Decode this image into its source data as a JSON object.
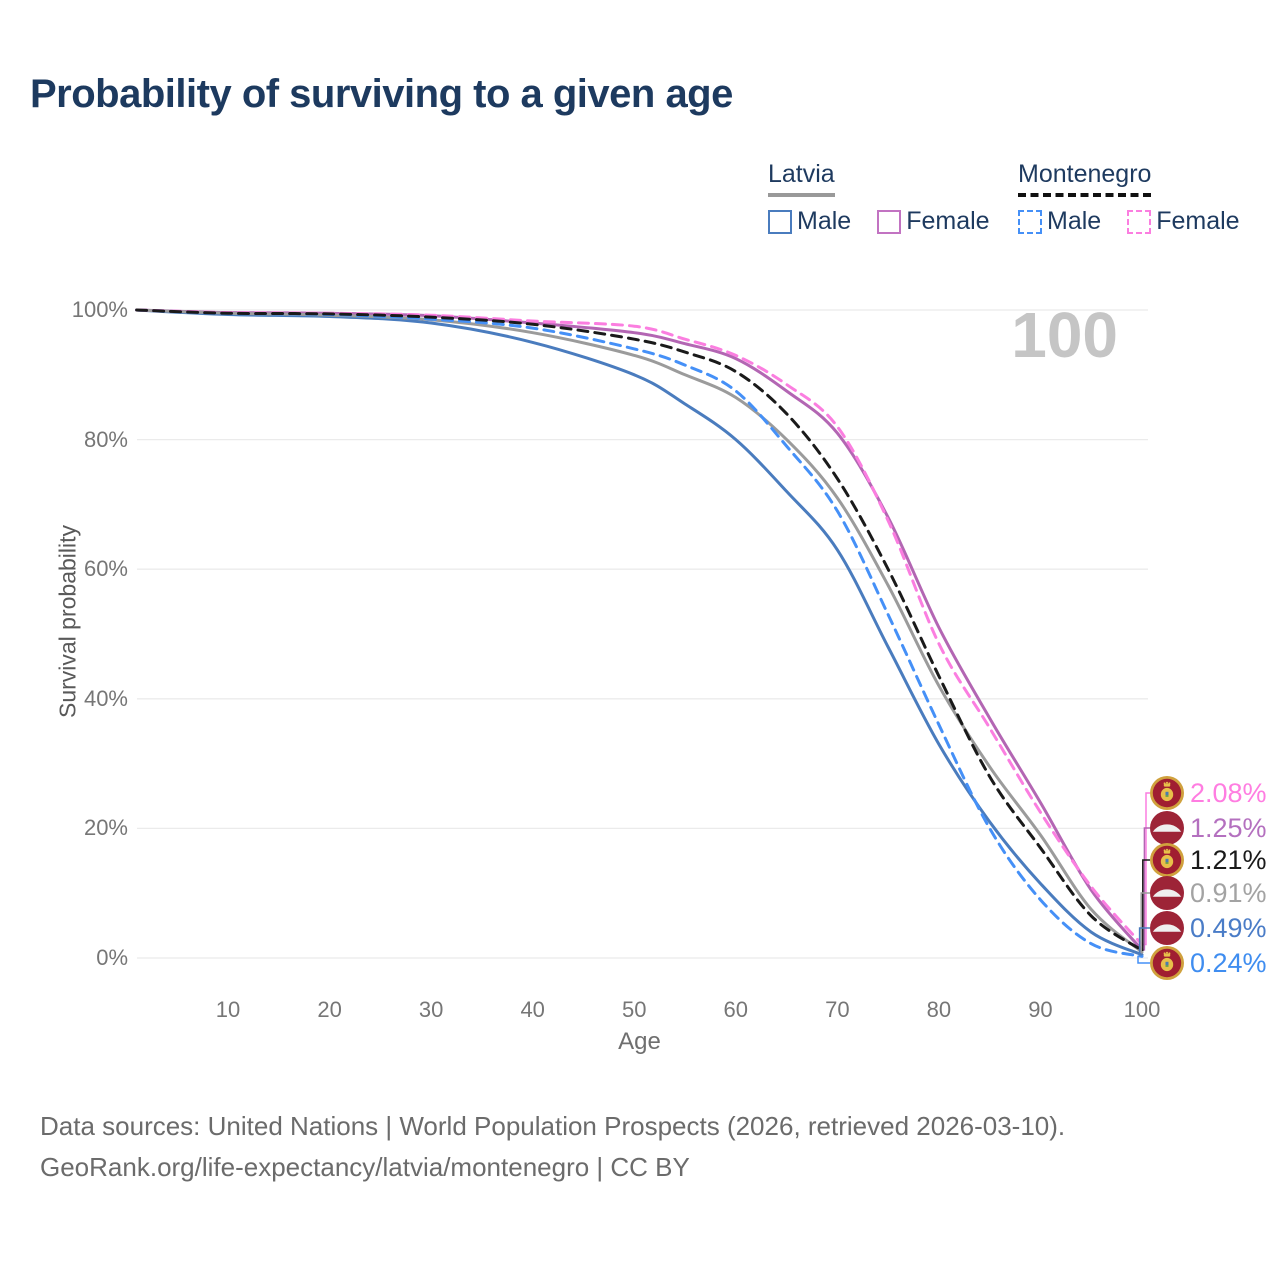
{
  "title": "Probability of surviving to a given age",
  "watermark": "100",
  "legend": {
    "groups": [
      {
        "label": "Latvia",
        "line_style": "solid",
        "underline_color": "#999999",
        "items": [
          {
            "label": "Male",
            "color": "#4a7cbe",
            "dashed": false
          },
          {
            "label": "Female",
            "color": "#c273c2",
            "dashed": false
          }
        ]
      },
      {
        "label": "Montenegro",
        "line_style": "dashed",
        "underline_color": "#111111",
        "items": [
          {
            "label": "Male",
            "color": "#4590f7",
            "dashed": true
          },
          {
            "label": "Female",
            "color": "#fb7ee0",
            "dashed": true
          }
        ]
      }
    ]
  },
  "chart_data": {
    "type": "line",
    "title": "Probability of surviving to a given age",
    "xlabel": "Age",
    "ylabel": "Survival probability",
    "xlim": [
      0,
      100
    ],
    "ylim": [
      0,
      100
    ],
    "grid": "horizontal",
    "legend_position": "top-right",
    "x_ticks": [
      10,
      20,
      30,
      40,
      50,
      60,
      70,
      80,
      90,
      100
    ],
    "y_ticks": [
      {
        "value": 100,
        "label": "100%"
      },
      {
        "value": 80,
        "label": "80%"
      },
      {
        "value": 60,
        "label": "60%"
      },
      {
        "value": 40,
        "label": "40%"
      },
      {
        "value": 20,
        "label": "20%"
      },
      {
        "value": 0,
        "label": "0%"
      }
    ],
    "ages": [
      1,
      10,
      20,
      30,
      40,
      50,
      55,
      60,
      65,
      70,
      75,
      80,
      85,
      90,
      95,
      100
    ],
    "series": [
      {
        "name": "Latvia Male",
        "country": "Latvia",
        "sex": "Male",
        "color": "#4a7cbe",
        "dash": "solid",
        "values": [
          100,
          99.3,
          99.0,
          98.0,
          95.0,
          90.0,
          85.5,
          80.0,
          72.0,
          63.0,
          48.0,
          33.0,
          21.0,
          11.5,
          4.0,
          0.49
        ]
      },
      {
        "name": "Latvia Female",
        "country": "Latvia",
        "sex": "Female",
        "color": "#b366b3",
        "dash": "solid",
        "values": [
          100,
          99.6,
          99.5,
          99.1,
          98.0,
          96.5,
          94.8,
          92.5,
          87.5,
          81.0,
          68.0,
          51.0,
          37.0,
          24.0,
          10.5,
          1.25
        ]
      },
      {
        "name": "Latvia (both sexes)",
        "country": "Latvia",
        "sex": "Both",
        "color": "#9b9b9b",
        "dash": "solid",
        "values": [
          100,
          99.5,
          99.2,
          98.5,
          96.5,
          93.0,
          90.0,
          86.5,
          80.0,
          71.0,
          57.5,
          42.0,
          29.5,
          19.0,
          7.5,
          0.91
        ]
      },
      {
        "name": "Montenegro Male",
        "country": "Montenegro",
        "sex": "Male",
        "color": "#4590f7",
        "dash": "dashed",
        "values": [
          100,
          99.5,
          99.3,
          98.6,
          97.2,
          94.0,
          91.5,
          87.5,
          79.0,
          69.0,
          53.0,
          36.0,
          20.0,
          9.0,
          2.2,
          0.24
        ]
      },
      {
        "name": "Montenegro Female",
        "country": "Montenegro",
        "sex": "Female",
        "color": "#fb7ee0",
        "dash": "dashed",
        "values": [
          100,
          99.6,
          99.5,
          99.2,
          98.3,
          97.5,
          95.5,
          93.0,
          88.5,
          82.0,
          67.5,
          48.5,
          35.5,
          22.5,
          11.0,
          2.08
        ]
      },
      {
        "name": "Montenegro (both sexes)",
        "country": "Montenegro",
        "sex": "Both",
        "color": "#1a1a1a",
        "dash": "dashed",
        "values": [
          100,
          99.5,
          99.4,
          98.9,
          97.8,
          95.5,
          93.5,
          90.5,
          84.0,
          74.0,
          60.0,
          43.5,
          28.0,
          17.0,
          6.5,
          1.21
        ]
      }
    ],
    "end_labels": [
      {
        "series": "Montenegro Female",
        "value": "2.08%",
        "color": "#ff7de1",
        "flag": "montenegro"
      },
      {
        "series": "Latvia Female",
        "value": "1.25%",
        "color": "#b470bf",
        "flag": "latvia"
      },
      {
        "series": "Montenegro (both sexes)",
        "value": "1.21%",
        "color": "#1a1a1a",
        "flag": "montenegro"
      },
      {
        "series": "Latvia (both sexes)",
        "value": "0.91%",
        "color": "#a3a3a3",
        "flag": "latvia"
      },
      {
        "series": "Latvia Male",
        "value": "0.49%",
        "color": "#4a7cc7",
        "flag": "latvia"
      },
      {
        "series": "Montenegro Male",
        "value": "0.24%",
        "color": "#3f8df0",
        "flag": "montenegro"
      }
    ],
    "age_cursor": "100"
  },
  "footer": {
    "line1": "Data sources: United Nations | World Population Prospects (2026, retrieved 2026-03-10).",
    "line2": "GeoRank.org/life-expectancy/latvia/montenegro | CC BY"
  }
}
